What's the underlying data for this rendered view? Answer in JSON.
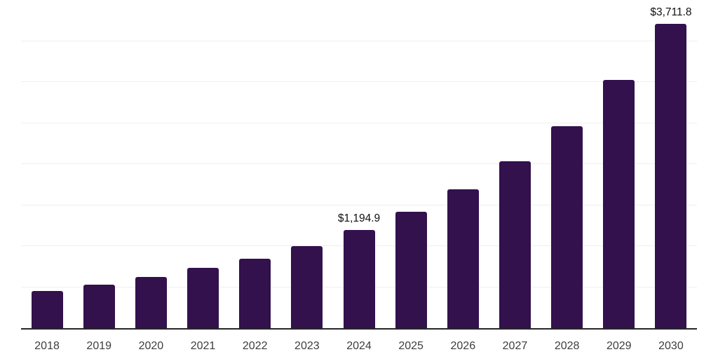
{
  "chart_data": {
    "type": "bar",
    "title": "",
    "xlabel": "",
    "ylabel": "",
    "categories": [
      "2018",
      "2019",
      "2020",
      "2021",
      "2022",
      "2023",
      "2024",
      "2025",
      "2026",
      "2027",
      "2028",
      "2029",
      "2030"
    ],
    "values": [
      452,
      529,
      622,
      734,
      845,
      1002,
      1194.9,
      1415,
      1689,
      2033,
      2464,
      3023,
      3711.8
    ],
    "data_labels": [
      "",
      "",
      "",
      "",
      "",
      "",
      "$1,194.9",
      "",
      "",
      "",
      "",
      "",
      "$3,711.8"
    ],
    "value_prefix": "$",
    "ylim": [
      0,
      4000
    ],
    "gridline_step": 500,
    "grid": "horizontal-only",
    "legend": "none",
    "y_axis_labels_visible": false,
    "colors": {
      "bar": "#32114D",
      "axis_line": "#262626",
      "gridline": "#efefef",
      "tick_label": "#3d3d3d",
      "data_label": "#111111",
      "background": "#ffffff"
    }
  }
}
